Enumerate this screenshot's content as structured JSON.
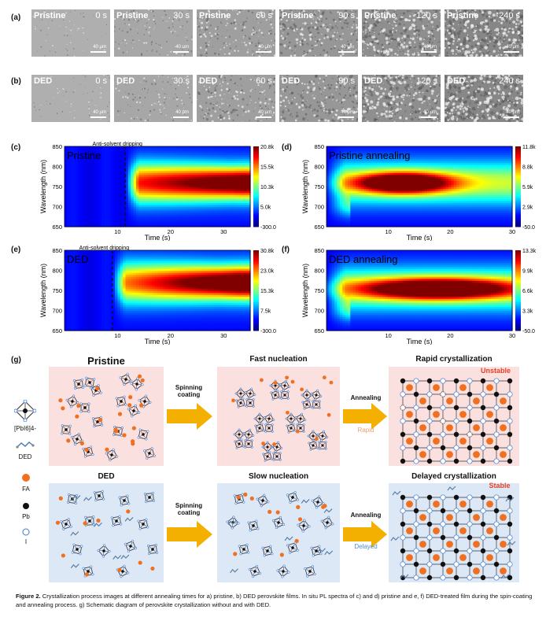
{
  "panel_labels": {
    "a": "(a)",
    "b": "(b)",
    "c": "(c)",
    "d": "(d)",
    "e": "(e)",
    "f": "(f)",
    "g": "(g)"
  },
  "row_a": [
    {
      "name": "Pristine",
      "time": "0 s",
      "scale": "40 μm"
    },
    {
      "name": "Pristine",
      "time": "30 s",
      "scale": "40 μm"
    },
    {
      "name": "Pristine",
      "time": "60 s",
      "scale": "40 μm"
    },
    {
      "name": "Pristine",
      "time": "90 s",
      "scale": "40 μm"
    },
    {
      "name": "Pristine",
      "time": "120 s",
      "scale": "40 μm"
    },
    {
      "name": "Pristine",
      "time": "240 s",
      "scale": "40 μm"
    }
  ],
  "row_b": [
    {
      "name": "DED",
      "time": "0 s",
      "scale": "40 μm"
    },
    {
      "name": "DED",
      "time": "30 s",
      "scale": "40 μm"
    },
    {
      "name": "DED",
      "time": "60 s",
      "scale": "40 μm"
    },
    {
      "name": "DED",
      "time": "90 s",
      "scale": "40 μm"
    },
    {
      "name": "DED",
      "time": "120 s",
      "scale": "40 μm"
    },
    {
      "name": "DED",
      "time": "240 s",
      "scale": "40 μm"
    }
  ],
  "chart_data": [
    {
      "type": "heatmap",
      "panel": "c",
      "title": "Pristine",
      "annotation": "Anti-solvent dripping",
      "xlabel": "Time (s)",
      "ylabel": "Wavelength (nm)",
      "xticks": [
        "10",
        "20",
        "30"
      ],
      "yticks": [
        "650",
        "700",
        "750",
        "800",
        "850"
      ],
      "colorbar_ticks": [
        "20.8k",
        "15.5k",
        "10.3k",
        "5.0k",
        "-300.0"
      ],
      "xlim": [
        0,
        35
      ],
      "ylim": [
        650,
        850
      ],
      "zlim": [
        -300,
        20800
      ],
      "peak_wavelength": 760
    },
    {
      "type": "heatmap",
      "panel": "d",
      "title": "Pristine annealing",
      "xlabel": "Time (s)",
      "ylabel": "Wavelength (nm)",
      "xticks": [
        "10",
        "20",
        "30"
      ],
      "yticks": [
        "650",
        "700",
        "750",
        "800",
        "850"
      ],
      "colorbar_ticks": [
        "11.8k",
        "8.8k",
        "5.9k",
        "2.9k",
        "-50.0"
      ],
      "xlim": [
        0,
        30
      ],
      "ylim": [
        650,
        850
      ],
      "zlim": [
        -50,
        11800
      ],
      "peak_wavelength": 760
    },
    {
      "type": "heatmap",
      "panel": "e",
      "title": "DED",
      "annotation": "Anti-solvent dripping",
      "xlabel": "Time (s)",
      "ylabel": "Wavelength (nm)",
      "xticks": [
        "10",
        "20",
        "30"
      ],
      "yticks": [
        "650",
        "700",
        "750",
        "800",
        "850"
      ],
      "colorbar_ticks": [
        "30.8k",
        "23.0k",
        "15.3k",
        "7.5k",
        "-300.0"
      ],
      "xlim": [
        0,
        35
      ],
      "ylim": [
        650,
        850
      ],
      "zlim": [
        -300,
        30800
      ],
      "peak_wavelength": 770
    },
    {
      "type": "heatmap",
      "panel": "f",
      "title": "DED annealing",
      "xlabel": "Time (s)",
      "ylabel": "Wavelength (nm)",
      "xticks": [
        "10",
        "20",
        "30"
      ],
      "yticks": [
        "650",
        "700",
        "750",
        "800",
        "850"
      ],
      "colorbar_ticks": [
        "13.3k",
        "9.9k",
        "6.6k",
        "3.3k",
        "-50.0"
      ],
      "xlim": [
        0,
        30
      ],
      "ylim": [
        650,
        850
      ],
      "zlim": [
        -50,
        13300
      ],
      "peak_wavelength": 755
    }
  ],
  "schematic": {
    "legend": {
      "pbi": "[PbI6]4-",
      "ded": "DED",
      "fa": "FA",
      "pb": "Pb",
      "i": "I"
    },
    "top": {
      "stage1": "Pristine",
      "arrow1": "Spinning\ncoating",
      "stage2": "Fast nucleation",
      "arrow2": "Annealing",
      "arrow2_sub": "Rapid",
      "stage3": "Rapid crystallization",
      "status": "Unstable"
    },
    "bottom": {
      "stage1": "DED",
      "arrow1": "Spinning\ncoating",
      "stage2": "Slow nucleation",
      "arrow2": "Annealing",
      "arrow2_sub": "Delayed",
      "stage3": "Delayed crystallization",
      "status": "Stable"
    }
  },
  "caption": {
    "label": "Figure 2.",
    "text": "Crystallization process images at different annealing times for a) pristine, b) DED perovskite films. In situ PL spectra of c) and d) pristine and e, f) DED-treated film during the spin-coating and annealing process. g) Schematic diagram of perovskite crystallization without and with DED."
  },
  "colors": {
    "pink": "#fbe0e0",
    "blue": "#dde8f7",
    "arrow": "#f4b000",
    "fa": "#f07020",
    "unstable": "#e8402a",
    "stable": "#e8402a",
    "rapid": "#f0a070",
    "delayed": "#4a90d0"
  }
}
